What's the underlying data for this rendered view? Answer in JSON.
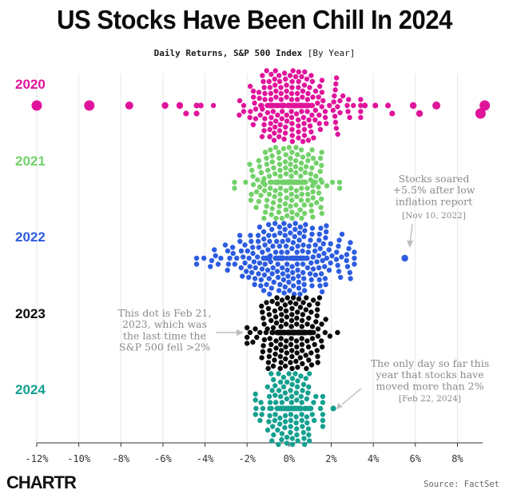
{
  "title": "US Stocks Have Been Chill In 2024",
  "subtitle": "Daily Returns, S&P 500 Index",
  "subtitle_tag": "[By Year]",
  "brand": "CHARTR",
  "source": "Source: FactSet",
  "chart_data": {
    "type": "scatter",
    "chart_style": "beeswarm",
    "xlim": [
      -12,
      9.2
    ],
    "xticks": [
      -12,
      -10,
      -8,
      -6,
      -4,
      -2,
      0,
      2,
      4,
      6,
      8
    ],
    "xtick_labels": [
      "-12%",
      "-10%",
      "-8%",
      "-6%",
      "-4%",
      "-2%",
      "0%",
      "2%",
      "4%",
      "6%",
      "8%"
    ],
    "grid": true,
    "series": [
      {
        "name": "2020",
        "color": "#e0149b",
        "distribution": {
          "count": 253,
          "mean": 0.1,
          "std": 1.2,
          "min": -3.6,
          "max": 3.4
        },
        "outliers": [
          -12.0,
          -9.5,
          -7.6,
          -5.9,
          -5.2,
          -4.9,
          -4.4,
          -4.4,
          -4.2,
          3.6,
          4.1,
          4.7,
          4.9,
          5.9,
          6.2,
          7.0,
          9.3,
          9.1
        ]
      },
      {
        "name": "2021",
        "color": "#73d16a",
        "distribution": {
          "count": 252,
          "mean": 0.1,
          "std": 0.8,
          "min": -2.6,
          "max": 2.4
        },
        "outliers": []
      },
      {
        "name": "2022",
        "color": "#2c5ce0",
        "distribution": {
          "count": 251,
          "mean": -0.1,
          "std": 1.5,
          "min": -4.4,
          "max": 3.1
        },
        "outliers": [
          5.5
        ]
      },
      {
        "name": "2023",
        "color": "#0a0a0a",
        "distribution": {
          "count": 250,
          "mean": 0.1,
          "std": 0.8,
          "min": -2.0,
          "max": 2.3
        },
        "outliers": []
      },
      {
        "name": "2024",
        "color": "#14a090",
        "distribution": {
          "count": 180,
          "mean": 0.1,
          "std": 0.7,
          "min": -1.6,
          "max": 1.6
        },
        "outliers": [
          2.1
        ]
      }
    ],
    "annotations": [
      {
        "year": "2022",
        "x": 5.5,
        "lines": [
          "Stocks soared",
          "+5.5% after low",
          "inflation report"
        ],
        "date": "[Nov 10, 2022]"
      },
      {
        "year": "2023",
        "x": -2.0,
        "lines": [
          "This dot is Feb 21,",
          "2023, which was",
          "the last time the",
          "S&P 500 fell >2%"
        ],
        "date": ""
      },
      {
        "year": "2024",
        "x": 2.1,
        "lines": [
          "The only day so far this",
          "year that stocks have",
          "moved more than 2%"
        ],
        "date": "[Feb 22, 2024]"
      }
    ]
  }
}
